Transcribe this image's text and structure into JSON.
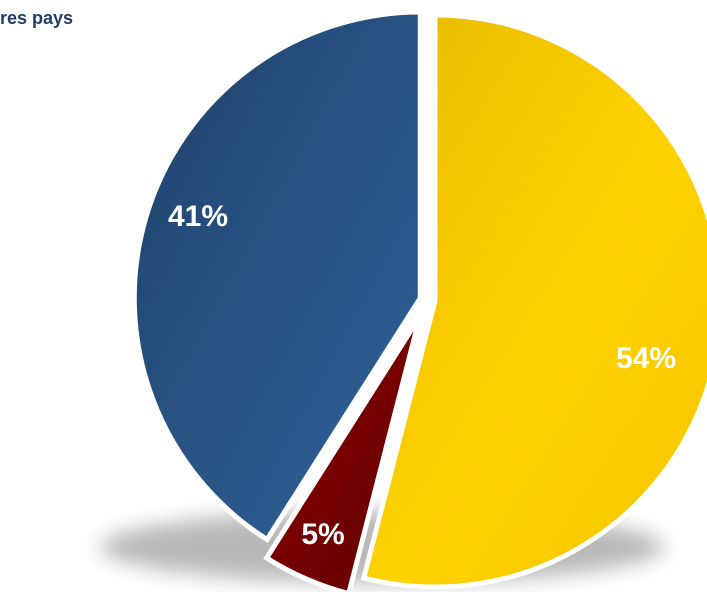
{
  "chart_data": {
    "type": "pie",
    "title": "",
    "visible_text_fragment": "res pays",
    "slices": [
      {
        "label": "54%",
        "value": 54,
        "color": "#f7cd00"
      },
      {
        "label": "5%",
        "value": 5,
        "color": "#7a0000"
      },
      {
        "label": "41%",
        "value": 41,
        "color": "#2a5587"
      }
    ],
    "label_colors": {
      "54%": "#ffffff",
      "5%": "#ffffff",
      "41%": "#ffffff"
    },
    "legend": "none"
  }
}
